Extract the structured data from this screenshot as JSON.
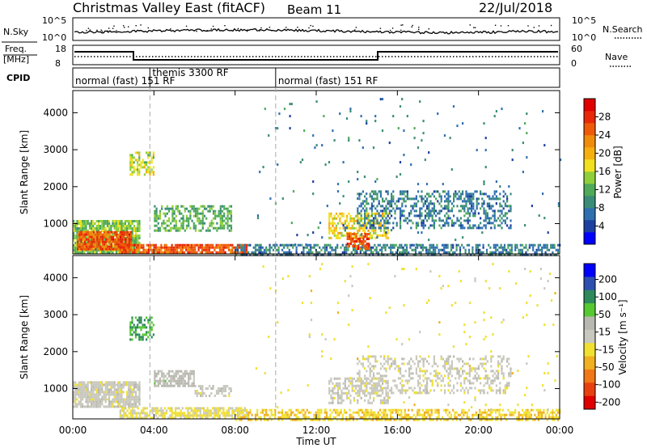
{
  "header": {
    "station": "Christmas Valley East (fitACF)",
    "beam": "Beam 11",
    "date": "22/Jul/2018"
  },
  "panels": {
    "nsky_label": "N.Sky",
    "nsearch_label": "N.Search",
    "nsky_ticks": [
      "10^5",
      "10^0"
    ],
    "freq_label_top": "Freq.",
    "freq_label_unit": "[MHz]",
    "freq_ticks": [
      "18",
      "8"
    ],
    "nave_label": "Nave",
    "nave_ticks": [
      "60",
      "0"
    ],
    "cpid_label": "CPID",
    "cpid_segments": [
      {
        "label": "normal (fast) 151 RF",
        "start": 0.0
      },
      {
        "label": "themis 3300 RF",
        "start": 3.8
      },
      {
        "label": "normal (fast) 151 RF",
        "start": 10.0
      }
    ]
  },
  "chart_data": [
    {
      "type": "heatmap",
      "name": "power",
      "xlabel": "Time UT",
      "ylabel": "Slant Range [km]",
      "xlim": [
        0,
        24
      ],
      "ylim": [
        180,
        4600
      ],
      "x_ticks": [
        "00:00",
        "04:00",
        "08:00",
        "12:00",
        "16:00",
        "20:00",
        "00:00"
      ],
      "y_ticks": [
        1000,
        2000,
        3000,
        4000
      ],
      "colorbar": {
        "label": "Power [dB]",
        "ticks": [
          4,
          8,
          12,
          16,
          20,
          24,
          28
        ],
        "range": [
          0,
          32
        ],
        "colors": [
          "#0000ff",
          "#1e3fa0",
          "#2f6fb0",
          "#3a8c78",
          "#4faa5a",
          "#8fcf3a",
          "#f0e020",
          "#f5b010",
          "#f08c0c",
          "#ee5a08",
          "#e82808",
          "#e00000"
        ]
      },
      "regions": [
        {
          "t0": 0.0,
          "t1": 3.3,
          "r0": 220,
          "r1": 1100,
          "power": 14,
          "density": 0.85
        },
        {
          "t0": 0.2,
          "t1": 2.9,
          "r0": 300,
          "r1": 800,
          "power": 26,
          "density": 0.9
        },
        {
          "t0": 2.3,
          "t1": 8.6,
          "r0": 200,
          "r1": 450,
          "power": 26,
          "density": 0.85
        },
        {
          "t0": 2.8,
          "t1": 4.0,
          "r0": 2300,
          "r1": 2950,
          "power": 16,
          "density": 0.55
        },
        {
          "t0": 4.0,
          "t1": 7.8,
          "r0": 800,
          "r1": 1500,
          "power": 12,
          "density": 0.55
        },
        {
          "t0": 8.0,
          "t1": 24.0,
          "r0": 180,
          "r1": 450,
          "power": 8,
          "density": 0.55
        },
        {
          "t0": 12.6,
          "t1": 15.5,
          "r0": 600,
          "r1": 1300,
          "power": 18,
          "density": 0.55
        },
        {
          "t0": 13.5,
          "t1": 14.6,
          "r0": 350,
          "r1": 750,
          "power": 26,
          "density": 0.65
        },
        {
          "t0": 14.0,
          "t1": 21.6,
          "r0": 900,
          "r1": 1900,
          "power": 8,
          "density": 0.4
        },
        {
          "t0": 9.0,
          "t1": 24.0,
          "r0": 450,
          "r1": 4400,
          "power": 8,
          "density": 0.015
        }
      ]
    },
    {
      "type": "heatmap",
      "name": "velocity",
      "xlabel": "Time UT",
      "ylabel": "Slant Range [km]",
      "xlim": [
        0,
        24
      ],
      "ylim": [
        180,
        4600
      ],
      "x_ticks": [
        "00:00",
        "04:00",
        "08:00",
        "12:00",
        "16:00",
        "20:00",
        "00:00"
      ],
      "y_ticks": [
        1000,
        2000,
        3000,
        4000
      ],
      "colorbar": {
        "label": "Velocity [m s⁻¹]",
        "ticks": [
          200,
          100,
          50,
          15,
          -15,
          -50,
          -100,
          -200
        ],
        "range": [
          -250,
          250
        ],
        "colors": [
          "#0000ff",
          "#2e4fb0",
          "#2e8a5a",
          "#56c832",
          "#b8b8b0",
          "#c8c8be",
          "#f0e030",
          "#f0b020",
          "#f07818",
          "#e84010",
          "#e00000"
        ]
      },
      "regions": [
        {
          "t0": 0.0,
          "t1": 3.3,
          "r0": 500,
          "r1": 1200,
          "velocity": 0,
          "density": 0.85
        },
        {
          "t0": 2.3,
          "t1": 8.6,
          "r0": 200,
          "r1": 500,
          "velocity": -30,
          "density": 0.7
        },
        {
          "t0": 2.8,
          "t1": 4.0,
          "r0": 2300,
          "r1": 2950,
          "velocity": 120,
          "density": 0.5
        },
        {
          "t0": 4.0,
          "t1": 6.0,
          "r0": 1100,
          "r1": 1500,
          "velocity": 40,
          "density": 0.7
        },
        {
          "t0": 6.0,
          "t1": 7.8,
          "r0": 800,
          "r1": 1100,
          "velocity": 0,
          "density": 0.5
        },
        {
          "t0": 8.0,
          "t1": 24.0,
          "r0": 180,
          "r1": 450,
          "velocity": -60,
          "density": 0.55
        },
        {
          "t0": 12.6,
          "t1": 15.5,
          "r0": 600,
          "r1": 1300,
          "velocity": 0,
          "density": 0.5
        },
        {
          "t0": 14.0,
          "t1": 21.6,
          "r0": 900,
          "r1": 1900,
          "velocity": 0,
          "density": 0.35
        },
        {
          "t0": 9.0,
          "t1": 24.0,
          "r0": 450,
          "r1": 4400,
          "velocity": -40,
          "density": 0.015
        }
      ]
    }
  ]
}
